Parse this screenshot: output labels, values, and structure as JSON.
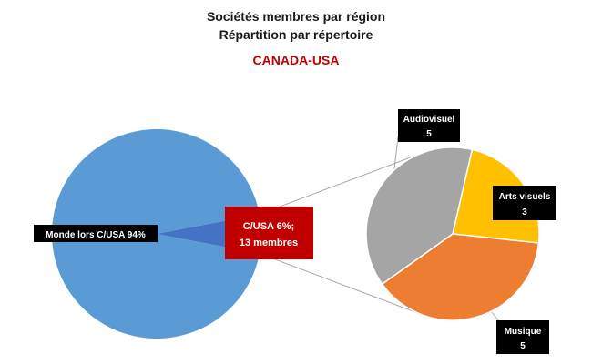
{
  "chart_data": {
    "type": "pie",
    "title": "Sociétés membres par région",
    "subtitle": "Répartition par répertoire",
    "region_title": "CANADA-USA",
    "main_pie": {
      "slices": [
        {
          "label": "Monde lors C/USA 94%",
          "value": 94,
          "color": "#5b9bd5"
        },
        {
          "label_line1": "C/USA  6%;",
          "label_line2": "13 membres",
          "value": 6,
          "color": "#4472c4"
        }
      ]
    },
    "breakdown_pie": {
      "slices": [
        {
          "name": "Arts visuels",
          "value": 3,
          "color": "#ffc000"
        },
        {
          "name": "Musique",
          "value": 5,
          "color": "#ed7d31"
        },
        {
          "name": "Audiovisuel",
          "value": 5,
          "color": "#a5a5a5"
        }
      ]
    },
    "label_box_color": "#000000",
    "highlight_box_color": "#c00000"
  }
}
